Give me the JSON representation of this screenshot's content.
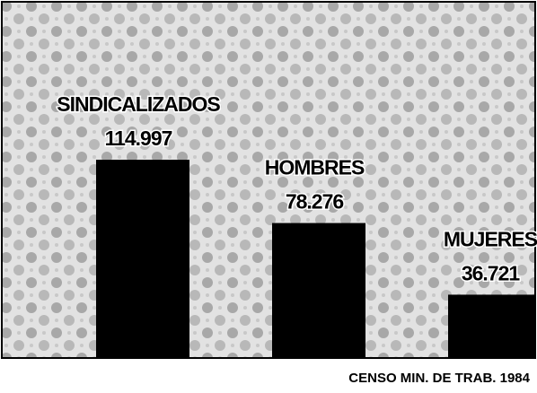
{
  "chart_data": {
    "type": "bar",
    "categories": [
      "SINDICALIZADOS",
      "HOMBRES",
      "MUJERES"
    ],
    "values": [
      114997,
      78276,
      36721
    ],
    "value_labels": [
      "114.997",
      "78.276",
      "36.721"
    ],
    "color": "#000000",
    "source": "CENSO MIN. DE TRAB. 1984"
  }
}
